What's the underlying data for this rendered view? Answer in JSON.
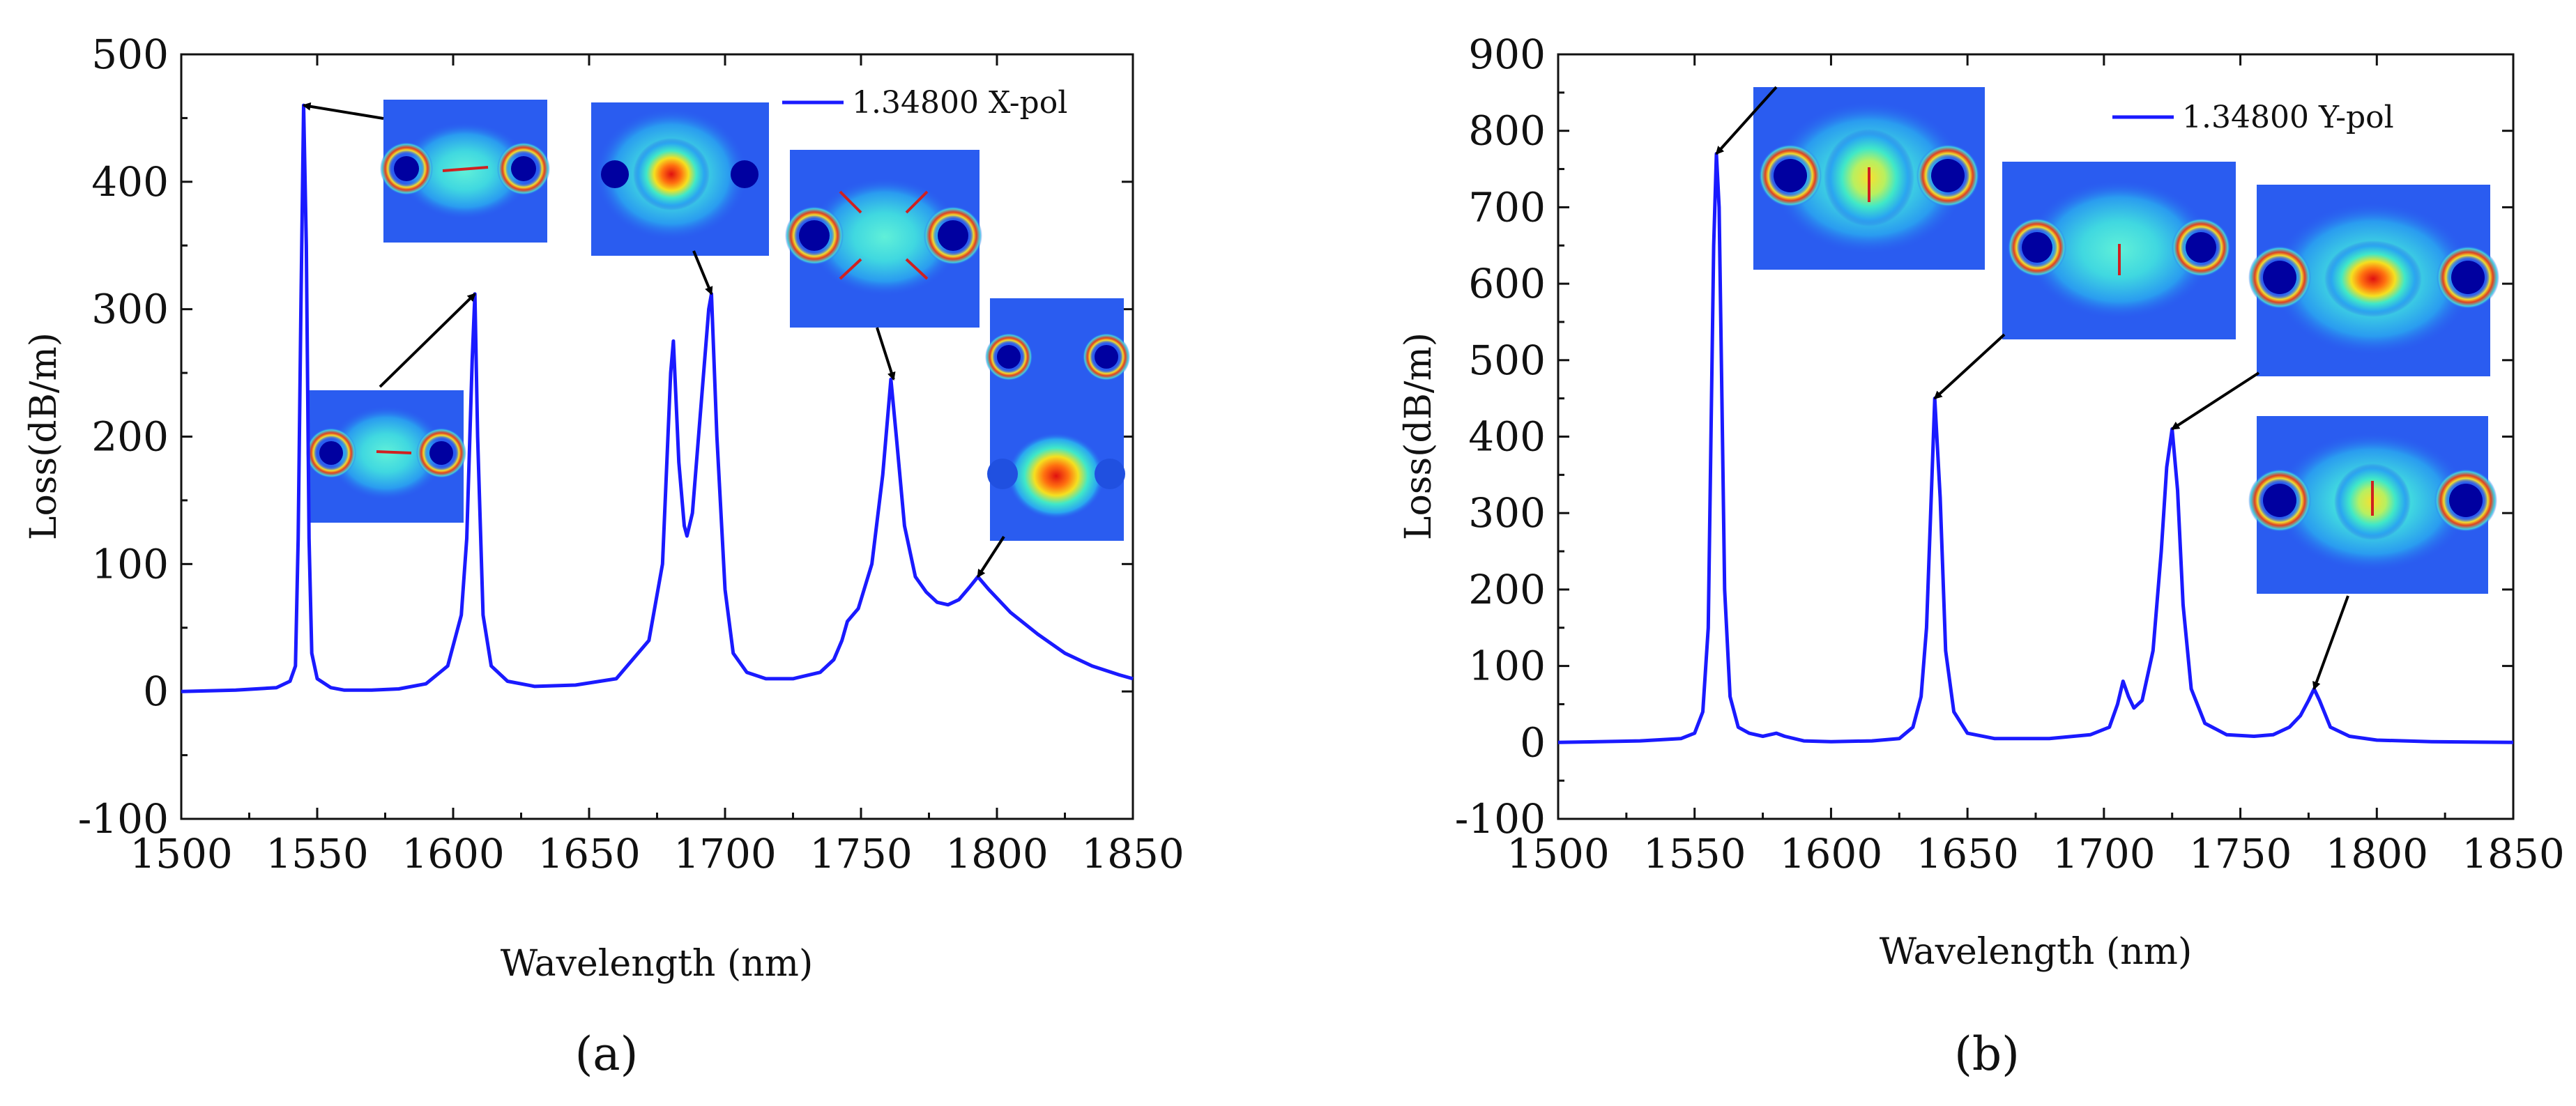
{
  "chart_data": [
    {
      "type": "line",
      "panel_label": "(a)",
      "xlabel": "Wavelength (nm)",
      "ylabel": "Loss(dB/m)",
      "xlim": [
        1500,
        1850
      ],
      "ylim": [
        -100,
        500
      ],
      "x_ticks": [
        1500,
        1550,
        1600,
        1650,
        1700,
        1750,
        1800,
        1850
      ],
      "y_ticks": [
        -100,
        0,
        100,
        200,
        300,
        400,
        500
      ],
      "legend_position": "top-right",
      "series": [
        {
          "name": "1.34800 X-pol",
          "color": "#1a1aff",
          "points": [
            [
              1500,
              0
            ],
            [
              1520,
              1
            ],
            [
              1535,
              3
            ],
            [
              1540,
              8
            ],
            [
              1542,
              20
            ],
            [
              1543,
              120
            ],
            [
              1544,
              300
            ],
            [
              1545,
              460
            ],
            [
              1546,
              350
            ],
            [
              1547,
              120
            ],
            [
              1548,
              30
            ],
            [
              1550,
              10
            ],
            [
              1555,
              3
            ],
            [
              1560,
              1
            ],
            [
              1570,
              1
            ],
            [
              1580,
              2
            ],
            [
              1590,
              6
            ],
            [
              1598,
              20
            ],
            [
              1603,
              60
            ],
            [
              1605,
              120
            ],
            [
              1607,
              260
            ],
            [
              1608,
              312
            ],
            [
              1609,
              200
            ],
            [
              1611,
              60
            ],
            [
              1614,
              20
            ],
            [
              1620,
              8
            ],
            [
              1630,
              4
            ],
            [
              1645,
              5
            ],
            [
              1660,
              10
            ],
            [
              1672,
              40
            ],
            [
              1677,
              100
            ],
            [
              1680,
              250
            ],
            [
              1681,
              275
            ],
            [
              1683,
              180
            ],
            [
              1685,
              130
            ],
            [
              1686,
              122
            ],
            [
              1688,
              140
            ],
            [
              1691,
              220
            ],
            [
              1694,
              300
            ],
            [
              1695,
              312
            ],
            [
              1697,
              200
            ],
            [
              1700,
              80
            ],
            [
              1703,
              30
            ],
            [
              1708,
              15
            ],
            [
              1715,
              10
            ],
            [
              1725,
              10
            ],
            [
              1735,
              15
            ],
            [
              1740,
              25
            ],
            [
              1743,
              40
            ],
            [
              1745,
              55
            ],
            [
              1749,
              65
            ],
            [
              1754,
              100
            ],
            [
              1758,
              170
            ],
            [
              1761,
              245
            ],
            [
              1763,
              200
            ],
            [
              1766,
              130
            ],
            [
              1770,
              90
            ],
            [
              1774,
              78
            ],
            [
              1778,
              70
            ],
            [
              1782,
              68
            ],
            [
              1786,
              72
            ],
            [
              1790,
              82
            ],
            [
              1793,
              90
            ],
            [
              1797,
              80
            ],
            [
              1805,
              62
            ],
            [
              1815,
              45
            ],
            [
              1825,
              30
            ],
            [
              1835,
              20
            ],
            [
              1845,
              13
            ],
            [
              1850,
              10
            ]
          ]
        }
      ],
      "annotations": [
        {
          "target": [
            1545,
            460
          ],
          "label": "mode-field-inset"
        },
        {
          "target": [
            1608,
            312
          ],
          "label": "mode-field-inset"
        },
        {
          "target": [
            1695,
            312
          ],
          "label": "mode-field-inset"
        },
        {
          "target": [
            1762,
            245
          ],
          "label": "mode-field-inset"
        },
        {
          "target": [
            1793,
            90
          ],
          "label": "mode-field-inset"
        }
      ]
    },
    {
      "type": "line",
      "panel_label": "(b)",
      "xlabel": "Wavelength (nm)",
      "ylabel": "Loss(dB/m)",
      "xlim": [
        1500,
        1850
      ],
      "ylim": [
        -100,
        900
      ],
      "x_ticks": [
        1500,
        1550,
        1600,
        1650,
        1700,
        1750,
        1800,
        1850
      ],
      "y_ticks": [
        -100,
        0,
        100,
        200,
        300,
        400,
        500,
        600,
        700,
        800,
        900
      ],
      "legend_position": "top-right",
      "series": [
        {
          "name": "1.34800 Y-pol",
          "color": "#1a1aff",
          "points": [
            [
              1500,
              0
            ],
            [
              1530,
              2
            ],
            [
              1545,
              5
            ],
            [
              1550,
              12
            ],
            [
              1553,
              40
            ],
            [
              1555,
              150
            ],
            [
              1556,
              400
            ],
            [
              1557,
              650
            ],
            [
              1558,
              770
            ],
            [
              1559,
              700
            ],
            [
              1560,
              450
            ],
            [
              1561,
              200
            ],
            [
              1563,
              60
            ],
            [
              1566,
              20
            ],
            [
              1570,
              12
            ],
            [
              1575,
              8
            ],
            [
              1580,
              12
            ],
            [
              1583,
              8
            ],
            [
              1590,
              2
            ],
            [
              1600,
              1
            ],
            [
              1615,
              2
            ],
            [
              1625,
              5
            ],
            [
              1630,
              20
            ],
            [
              1633,
              60
            ],
            [
              1635,
              150
            ],
            [
              1637,
              350
            ],
            [
              1638,
              450
            ],
            [
              1640,
              320
            ],
            [
              1642,
              120
            ],
            [
              1645,
              40
            ],
            [
              1650,
              12
            ],
            [
              1660,
              5
            ],
            [
              1680,
              5
            ],
            [
              1695,
              10
            ],
            [
              1702,
              20
            ],
            [
              1705,
              50
            ],
            [
              1707,
              80
            ],
            [
              1709,
              60
            ],
            [
              1711,
              45
            ],
            [
              1714,
              55
            ],
            [
              1718,
              120
            ],
            [
              1721,
              250
            ],
            [
              1723,
              360
            ],
            [
              1725,
              410
            ],
            [
              1727,
              330
            ],
            [
              1729,
              180
            ],
            [
              1732,
              70
            ],
            [
              1737,
              25
            ],
            [
              1745,
              10
            ],
            [
              1755,
              8
            ],
            [
              1762,
              10
            ],
            [
              1768,
              20
            ],
            [
              1772,
              35
            ],
            [
              1775,
              55
            ],
            [
              1777,
              70
            ],
            [
              1779,
              55
            ],
            [
              1783,
              20
            ],
            [
              1790,
              8
            ],
            [
              1800,
              3
            ],
            [
              1820,
              1
            ],
            [
              1850,
              0
            ]
          ]
        }
      ],
      "annotations": [
        {
          "target": [
            1558,
            770
          ],
          "label": "mode-field-inset"
        },
        {
          "target": [
            1638,
            450
          ],
          "label": "mode-field-inset"
        },
        {
          "target": [
            1725,
            410
          ],
          "label": "mode-field-inset"
        },
        {
          "target": [
            1777,
            70
          ],
          "label": "mode-field-inset"
        }
      ]
    }
  ],
  "colors": {
    "line": "#1a1aff",
    "axis": "#111111",
    "field_background": "#2a5cf0",
    "field_core_hot": "#e02010",
    "field_core_warm": "#f5e020",
    "field_core_cool": "#30e0d0",
    "air_hole": "#0000a0"
  }
}
